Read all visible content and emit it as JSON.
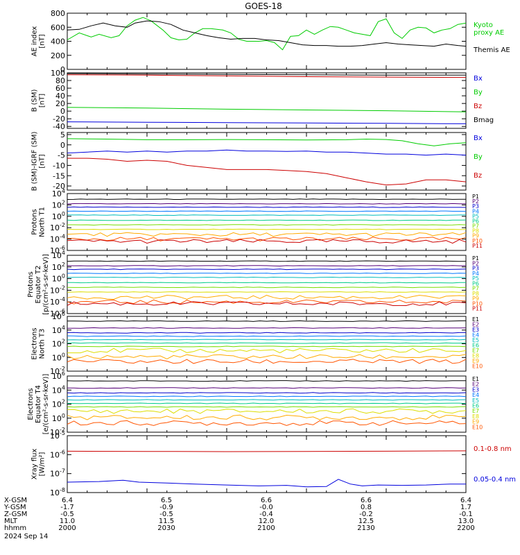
{
  "title": "GOES-18",
  "colors": {
    "black": "#000000",
    "green": "#00cc00",
    "blue": "#0000dd",
    "red": "#cc0000",
    "P": [
      "#000000",
      "#550077",
      "#0000cc",
      "#0077ff",
      "#00bbbb",
      "#00cc88",
      "#77dd00",
      "#dddd00",
      "#ffaa00",
      "#ff5500",
      "#cc0000",
      "#cc0000"
    ],
    "E": [
      "#000000",
      "#550077",
      "#0000cc",
      "#0077ff",
      "#00bbbb",
      "#00cc88",
      "#77dd00",
      "#dddd00",
      "#ffaa00",
      "#ff5500",
      "#cc0000"
    ]
  },
  "chart_data": [
    {
      "id": "ae",
      "type": "line",
      "ylabel": "AE index\n[nT]",
      "ylim": [
        0,
        800
      ],
      "yticks": [
        "0",
        "200",
        "400",
        "600",
        "800"
      ],
      "yscale": "linear",
      "legend": [
        {
          "text": "Kyoto\nproxy AE",
          "color": "#00cc00"
        },
        {
          "text": "Themis AE",
          "color": "#000000"
        }
      ],
      "series": [
        {
          "name": "Kyoto proxy AE",
          "color": "#00cc00",
          "x": [
            0,
            3,
            6,
            8,
            11,
            13,
            15,
            17,
            19,
            21,
            24,
            26,
            28,
            30,
            32,
            34,
            36,
            39,
            41,
            43,
            45,
            48,
            50,
            52,
            54,
            56,
            58,
            60,
            62,
            64,
            66,
            68,
            70,
            72,
            74,
            76,
            78,
            80,
            82,
            84,
            86,
            88,
            90,
            92,
            94,
            96,
            98,
            100
          ],
          "y": [
            420,
            520,
            460,
            500,
            450,
            480,
            620,
            700,
            740,
            690,
            560,
            450,
            420,
            430,
            520,
            580,
            580,
            560,
            520,
            430,
            400,
            400,
            410,
            380,
            280,
            470,
            480,
            560,
            500,
            560,
            610,
            600,
            560,
            520,
            500,
            480,
            680,
            720,
            520,
            440,
            560,
            600,
            590,
            520,
            560,
            580,
            640,
            660
          ]
        },
        {
          "name": "Themis AE",
          "color": "#000000",
          "x": [
            0,
            3,
            6,
            9,
            12,
            15,
            17,
            20,
            23,
            26,
            29,
            32,
            35,
            38,
            41,
            44,
            47,
            50,
            53,
            56,
            59,
            62,
            65,
            68,
            71,
            74,
            77,
            80,
            83,
            86,
            89,
            92,
            95,
            98,
            100
          ],
          "y": [
            560,
            570,
            620,
            660,
            620,
            600,
            660,
            690,
            680,
            640,
            560,
            520,
            480,
            450,
            430,
            440,
            440,
            420,
            410,
            380,
            350,
            340,
            340,
            330,
            330,
            340,
            360,
            380,
            360,
            350,
            340,
            330,
            360,
            340,
            330
          ]
        }
      ]
    },
    {
      "id": "bsm",
      "type": "line",
      "ylabel": "B (SM)\n[nT]",
      "ylim": [
        -45,
        100
      ],
      "yticks": [
        "-40",
        "-20",
        "0",
        "20",
        "40",
        "60",
        "80",
        "100"
      ],
      "yscale": "linear",
      "legend": [
        {
          "text": "Bx",
          "color": "#0000dd"
        },
        {
          "text": "By",
          "color": "#00cc00"
        },
        {
          "text": "Bz",
          "color": "#cc0000"
        },
        {
          "text": "Bmag",
          "color": "#000000"
        }
      ],
      "series": [
        {
          "name": "Bmag",
          "color": "#000000",
          "x": [
            0,
            20,
            40,
            60,
            80,
            100
          ],
          "y": [
            98,
            97,
            96,
            95,
            94,
            94
          ]
        },
        {
          "name": "Bz",
          "color": "#cc0000",
          "x": [
            0,
            20,
            40,
            60,
            80,
            100
          ],
          "y": [
            95,
            94,
            92,
            90,
            89,
            88
          ]
        },
        {
          "name": "By",
          "color": "#00cc00",
          "x": [
            0,
            20,
            40,
            60,
            80,
            100
          ],
          "y": [
            10,
            8,
            5,
            3,
            1,
            -2
          ]
        },
        {
          "name": "Bx",
          "color": "#0000dd",
          "x": [
            0,
            20,
            40,
            60,
            80,
            100
          ],
          "y": [
            -28,
            -29,
            -30,
            -31,
            -32,
            -33
          ]
        }
      ]
    },
    {
      "id": "bigrf",
      "type": "line",
      "ylabel": "B (SM)-IGRF (SM)\n[nT]",
      "ylim": [
        -22,
        6
      ],
      "yticks": [
        "-20",
        "-15",
        "-10",
        "-5",
        "0",
        "5"
      ],
      "yscale": "linear",
      "legend": [
        {
          "text": "Bx",
          "color": "#0000dd"
        },
        {
          "text": "By",
          "color": "#00cc00"
        },
        {
          "text": "Bz",
          "color": "#cc0000"
        }
      ],
      "series": [
        {
          "name": "By",
          "color": "#00cc00",
          "x": [
            0,
            10,
            20,
            30,
            40,
            50,
            60,
            70,
            75,
            80,
            84,
            88,
            92,
            96,
            100
          ],
          "y": [
            3,
            2.8,
            2.5,
            2.5,
            2.6,
            2.5,
            2.4,
            2.5,
            2.8,
            2.6,
            2,
            0.5,
            -0.5,
            0.5,
            1
          ]
        },
        {
          "name": "Bx",
          "color": "#0000dd",
          "x": [
            0,
            5,
            10,
            15,
            20,
            25,
            30,
            35,
            40,
            45,
            50,
            55,
            60,
            65,
            70,
            75,
            80,
            85,
            90,
            95,
            100
          ],
          "y": [
            -4,
            -3.5,
            -3,
            -3.5,
            -3,
            -3.5,
            -3,
            -3,
            -2.5,
            -3,
            -3,
            -3.2,
            -3,
            -3.5,
            -3.5,
            -4,
            -4.5,
            -4.5,
            -5,
            -4.5,
            -5
          ]
        },
        {
          "name": "Bz",
          "color": "#cc0000",
          "x": [
            0,
            5,
            10,
            15,
            20,
            25,
            30,
            35,
            40,
            45,
            50,
            55,
            60,
            65,
            70,
            75,
            80,
            85,
            90,
            95,
            100
          ],
          "y": [
            -6.5,
            -6.5,
            -7,
            -8,
            -7.5,
            -8,
            -10,
            -11,
            -12,
            -12,
            -12,
            -12.5,
            -13,
            -14,
            -16,
            -18,
            -19.5,
            -19,
            -17,
            -17,
            -18
          ]
        }
      ]
    },
    {
      "id": "pn",
      "type": "line",
      "ylabel": "Protons\nNorth T1",
      "yscale": "log",
      "ylim": [
        -6,
        4
      ],
      "yticks": [
        -6,
        -4,
        -2,
        0,
        2,
        4
      ],
      "legend": [
        {
          "text": "P1"
        },
        {
          "text": "P2"
        },
        {
          "text": "P3"
        },
        {
          "text": "P4"
        },
        {
          "text": "P5"
        },
        {
          "text": "P6"
        },
        {
          "text": "P7"
        },
        {
          "text": "P8"
        },
        {
          "text": "P9"
        },
        {
          "text": "P10"
        },
        {
          "text": "P11"
        }
      ],
      "levels": [
        3.0,
        2.2,
        1.6,
        0.9,
        0.2,
        -0.7,
        -1.5,
        -2.3,
        -3.2,
        -4.0,
        -4.4
      ]
    },
    {
      "id": "pe",
      "type": "line",
      "ylabel": "Protons\nEquator T2\n[p/(cm²-s-sr-keV)]",
      "yscale": "log",
      "ylim": [
        -6,
        4
      ],
      "yticks": [
        -6,
        -4,
        -2,
        0,
        2,
        4
      ],
      "legend": [
        {
          "text": "P1"
        },
        {
          "text": "P2"
        },
        {
          "text": "P3"
        },
        {
          "text": "P4"
        },
        {
          "text": "P5"
        },
        {
          "text": "P6"
        },
        {
          "text": "P7"
        },
        {
          "text": "P8"
        },
        {
          "text": "P9"
        },
        {
          "text": "P10"
        },
        {
          "text": "P11"
        }
      ],
      "levels": [
        3.0,
        2.2,
        1.6,
        0.9,
        0.2,
        -0.7,
        -1.5,
        -2.3,
        -3.2,
        -4.0,
        -4.3
      ]
    },
    {
      "id": "en",
      "type": "line",
      "ylabel": "Electrons\nNorth T3",
      "yscale": "log",
      "ylim": [
        -2,
        6
      ],
      "yticks": [
        -2,
        0,
        2,
        4,
        6
      ],
      "legend": [
        {
          "text": "E1"
        },
        {
          "text": "E2"
        },
        {
          "text": "E3"
        },
        {
          "text": "E4"
        },
        {
          "text": "E5"
        },
        {
          "text": "E6"
        },
        {
          "text": "E7"
        },
        {
          "text": "E8"
        },
        {
          "text": "E9"
        },
        {
          "text": "E10"
        }
      ],
      "levels": [
        5.3,
        4.3,
        3.6,
        3.1,
        2.6,
        2.1,
        1.6,
        1.0,
        0.1,
        -0.6
      ]
    },
    {
      "id": "ee",
      "type": "line",
      "ylabel": "Electrons\nEquator T4\n[e/(cm²-s-sr-keV)]",
      "yscale": "log",
      "ylim": [
        -2,
        6
      ],
      "yticks": [
        -2,
        0,
        2,
        4,
        6
      ],
      "legend": [
        {
          "text": "E1"
        },
        {
          "text": "E2"
        },
        {
          "text": "E3"
        },
        {
          "text": "E4"
        },
        {
          "text": "E5"
        },
        {
          "text": "E6"
        },
        {
          "text": "E7"
        },
        {
          "text": "E8"
        },
        {
          "text": "E9"
        },
        {
          "text": "E10"
        }
      ],
      "levels": [
        5.3,
        4.3,
        3.6,
        3.1,
        2.6,
        2.1,
        1.6,
        1.0,
        0.1,
        -0.7
      ]
    },
    {
      "id": "xray",
      "type": "line",
      "ylabel": "Xray flux\n[W/m²]",
      "yscale": "log",
      "ylim": [
        -8,
        -5
      ],
      "yticks": [
        -8,
        -7,
        -6,
        -5
      ],
      "legend": [
        {
          "text": "0.1-0.8 nm",
          "color": "#cc0000"
        },
        {
          "text": "0.05-0.4 nm",
          "color": "#0000dd"
        }
      ],
      "series": [
        {
          "name": "0.1-0.8 nm",
          "color": "#cc0000",
          "x": [
            0,
            20,
            40,
            60,
            80,
            100
          ],
          "y": [
            -5.82,
            -5.83,
            -5.84,
            -5.83,
            -5.82,
            -5.8
          ]
        },
        {
          "name": "0.05-0.4 nm",
          "color": "#0000dd",
          "x": [
            0,
            8,
            14,
            18,
            25,
            32,
            40,
            48,
            55,
            60,
            65,
            68,
            71,
            74,
            78,
            84,
            90,
            96,
            100
          ],
          "y": [
            -7.45,
            -7.42,
            -7.35,
            -7.45,
            -7.5,
            -7.55,
            -7.6,
            -7.65,
            -7.62,
            -7.7,
            -7.68,
            -7.3,
            -7.55,
            -7.65,
            -7.6,
            -7.62,
            -7.6,
            -7.55,
            -7.55
          ]
        }
      ]
    }
  ],
  "xaxis": {
    "rows": [
      {
        "label": "X-GSM",
        "values": [
          "6.4",
          "6.5",
          "6.6",
          "6.6",
          "6.4"
        ]
      },
      {
        "label": "Y-GSM",
        "values": [
          "-1.7",
          "-0.9",
          "-0.0",
          "0.8",
          "1.7"
        ]
      },
      {
        "label": "Z-GSM",
        "values": [
          "-0.5",
          "-0.5",
          "-0.4",
          "-0.2",
          "-0.1"
        ]
      },
      {
        "label": "MLT",
        "values": [
          "11.0",
          "11.5",
          "12.0",
          "12.5",
          "13.0"
        ]
      },
      {
        "label": "hhmm",
        "values": [
          "2000",
          "2030",
          "2100",
          "2130",
          "2200"
        ]
      }
    ],
    "date": "2024 Sep 14"
  }
}
